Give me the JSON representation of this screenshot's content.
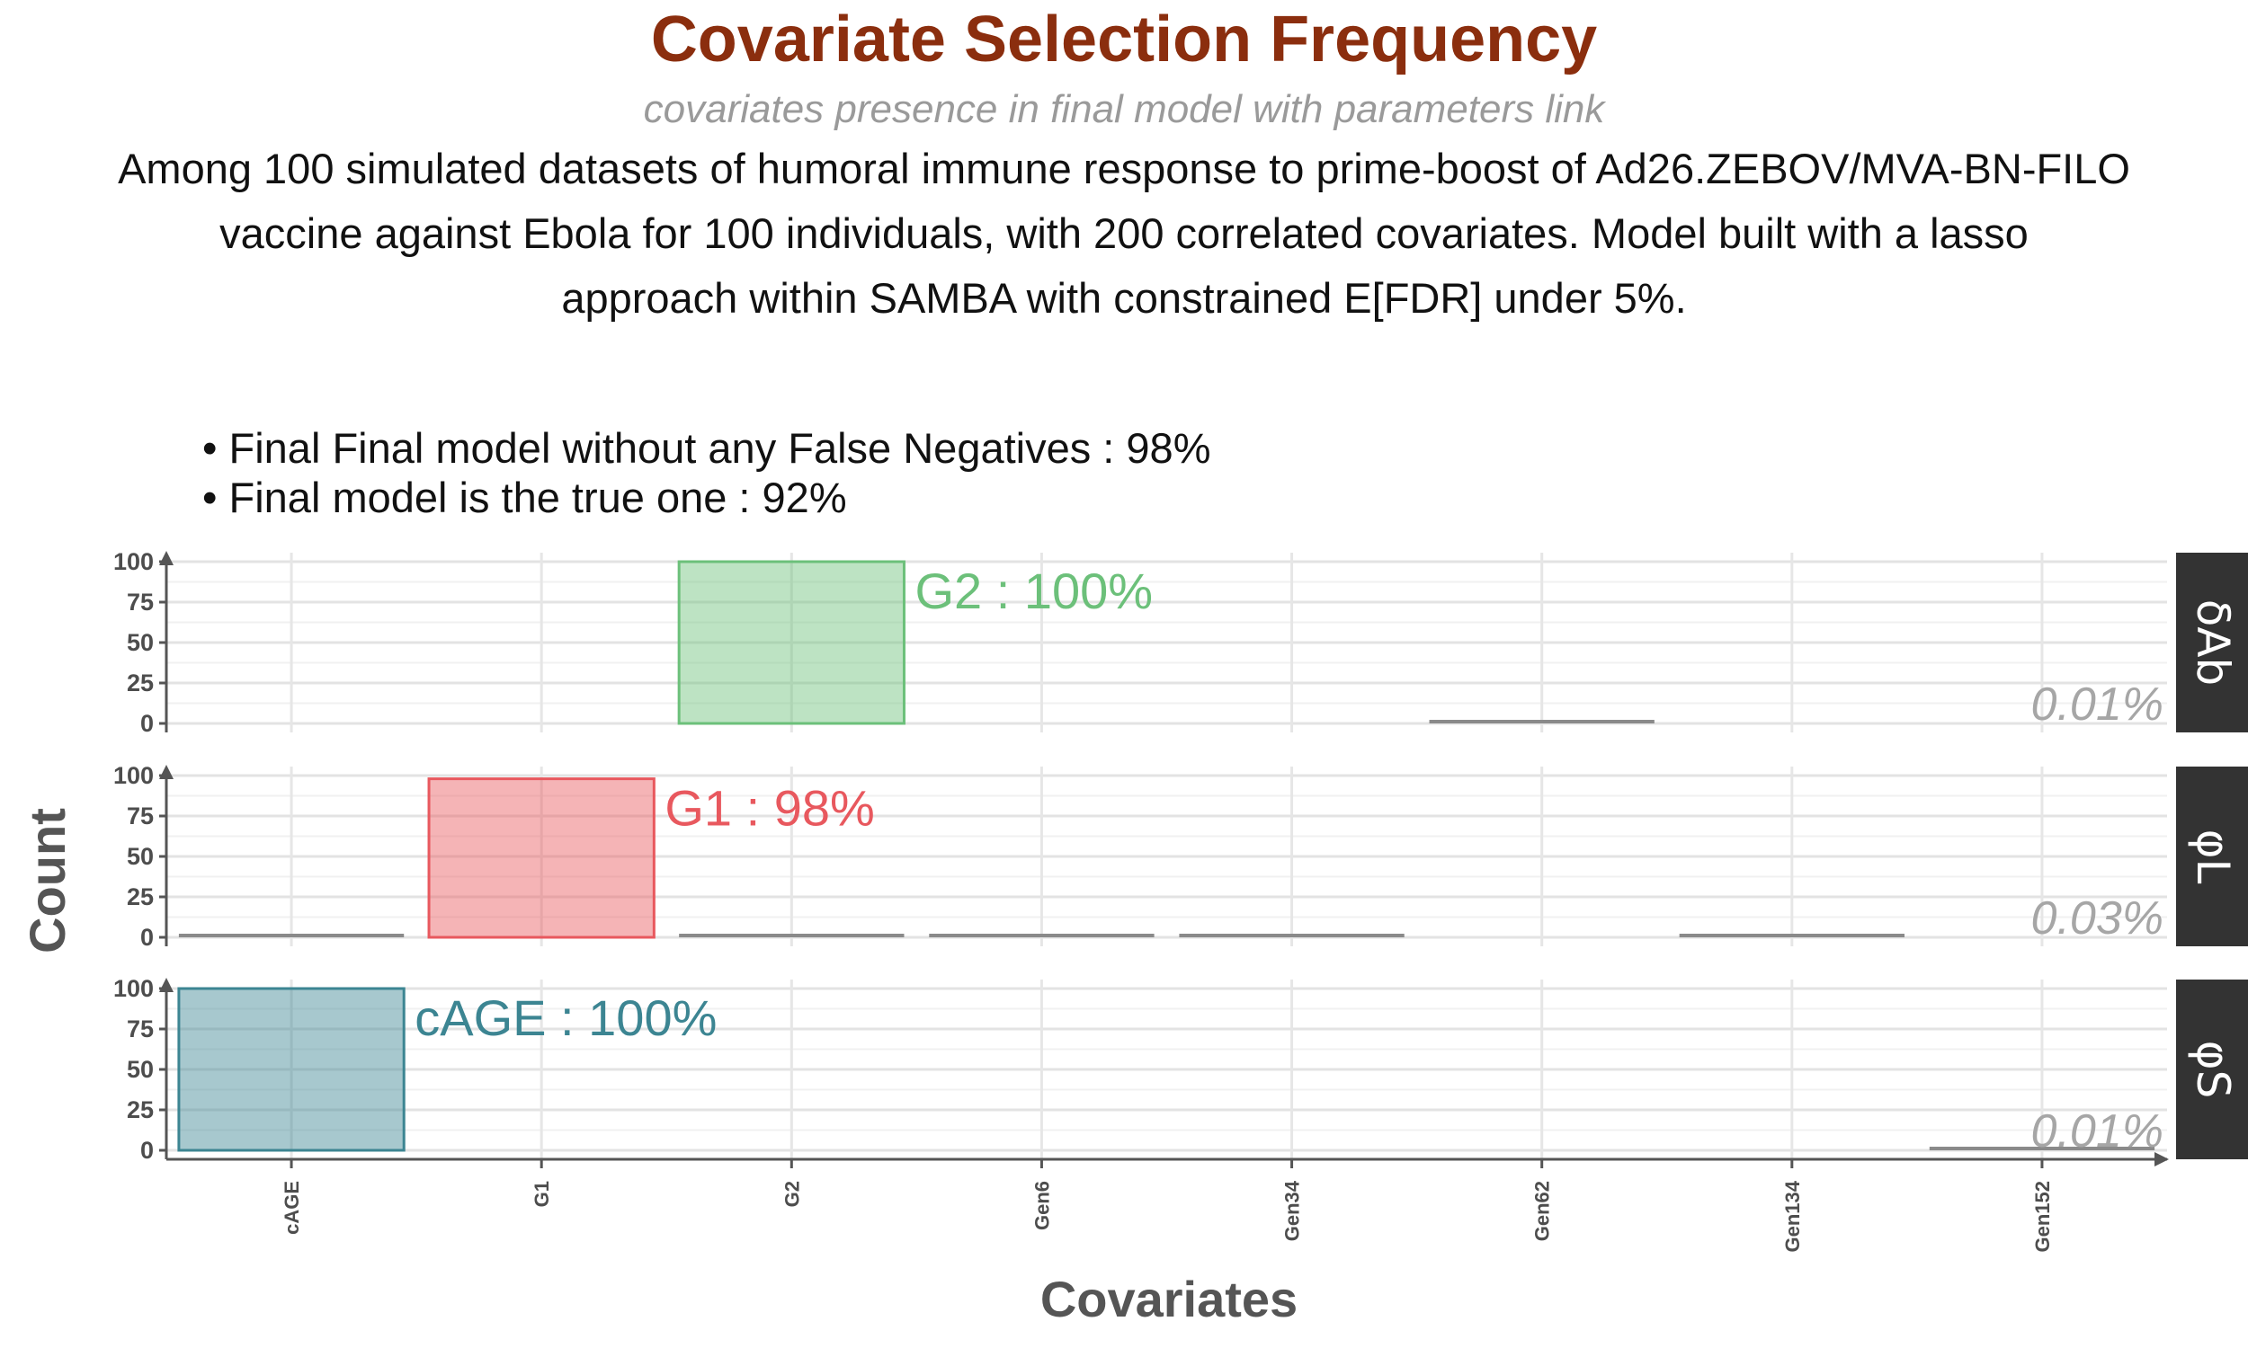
{
  "title": "Covariate Selection Frequency",
  "subtitle": "covariates presence in final model with parameters link",
  "caption_lines": [
    "Among 100 simulated datasets of humoral immune response to prime-boost of Ad26.ZEBOV/MVA-BN-FILO",
    "vaccine against Ebola for 100 individuals, with 200 correlated covariates. Model built with a lasso",
    "approach within SAMBA with constrained E[FDR] under 5%."
  ],
  "bullets": [
    "• Final Final model without any False Negatives : 98%",
    "• Final model is the true one  : 92%"
  ],
  "chart_data": {
    "type": "bar",
    "xlabel": "Covariates",
    "ylabel": "Count",
    "categories": [
      "cAGE",
      "G1",
      "G2",
      "Gen6",
      "Gen34",
      "Gen62",
      "Gen134",
      "Gen152"
    ],
    "ylim": [
      0,
      100
    ],
    "yticks": [
      "0",
      "25",
      "50",
      "75",
      "100"
    ],
    "grid": true,
    "panels": [
      {
        "strip": "δAb",
        "values": [
          0,
          0,
          100,
          0,
          0,
          1,
          0,
          0
        ],
        "highlight": {
          "category": "G2",
          "label": "G2 : 100%",
          "color": "#6cc07a"
        },
        "corner_label": "0.01%"
      },
      {
        "strip": "φL",
        "values": [
          1,
          98,
          1,
          2,
          1,
          0,
          1,
          0
        ],
        "highlight": {
          "category": "G1",
          "label": "G1 : 98%",
          "color": "#e8585e"
        },
        "corner_label": "0.03%"
      },
      {
        "strip": "φS",
        "values": [
          100,
          0,
          0,
          0,
          0,
          0,
          0,
          1
        ],
        "highlight": {
          "category": "cAGE",
          "label": "cAGE : 100%",
          "color": "#3c8592"
        },
        "corner_label": "0.01%"
      }
    ],
    "other_bar_color": "#8a8a8a"
  }
}
